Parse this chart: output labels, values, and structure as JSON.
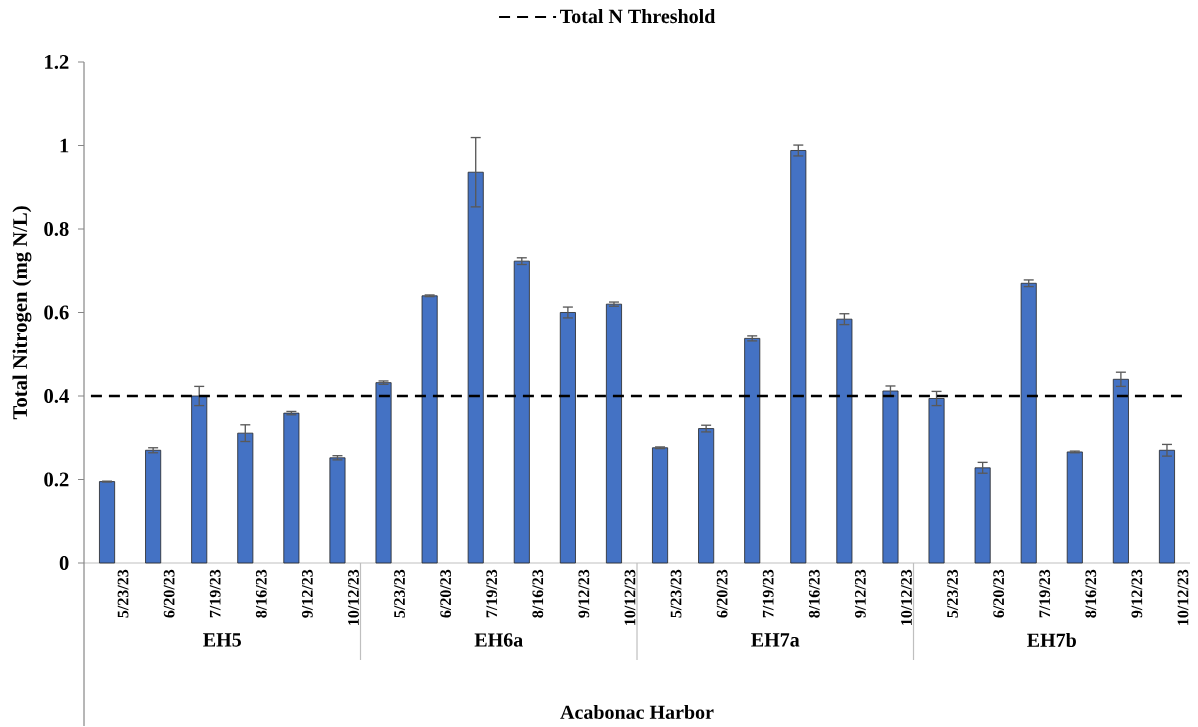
{
  "chart_data": {
    "type": "bar",
    "xlabel": "Acabonac Harbor",
    "ylabel": "Total Nitrogen (mg N/L)",
    "categories": [
      "5/23/23",
      "6/20/23",
      "7/19/23",
      "8/16/23",
      "9/12/23",
      "10/12/23",
      "5/23/23",
      "6/20/23",
      "7/19/23",
      "8/16/23",
      "9/12/23",
      "10/12/23",
      "5/23/23",
      "6/20/23",
      "7/19/23",
      "8/16/23",
      "9/12/23",
      "10/12/23",
      "5/23/23",
      "6/20/23",
      "7/19/23",
      "8/16/23",
      "9/12/23",
      "10/12/23"
    ],
    "values": [
      0.195,
      0.27,
      0.4,
      0.311,
      0.359,
      0.252,
      0.432,
      0.64,
      0.936,
      0.723,
      0.6,
      0.62,
      0.276,
      0.322,
      0.538,
      0.988,
      0.584,
      0.412,
      0.394,
      0.228,
      0.67,
      0.266,
      0.44,
      0.27
    ],
    "errors": [
      0.001,
      0.006,
      0.023,
      0.02,
      0.004,
      0.005,
      0.004,
      0.002,
      0.083,
      0.008,
      0.013,
      0.005,
      0.002,
      0.008,
      0.006,
      0.013,
      0.013,
      0.012,
      0.017,
      0.013,
      0.008,
      0.002,
      0.017,
      0.014
    ],
    "color": "#4472c4",
    "ylim": [
      0,
      1.2
    ],
    "yticks": [
      0,
      0.2,
      0.4,
      0.6,
      0.8,
      1,
      1.2
    ],
    "ref_lines": [
      {
        "axis": "y",
        "value": 0.4,
        "label": "Total N Threshold",
        "color": "#000000",
        "line_style": "dashed"
      }
    ],
    "legend": "top",
    "annotations": [
      "EH5",
      "EH6a",
      "EH7a",
      "EH7b"
    ]
  }
}
